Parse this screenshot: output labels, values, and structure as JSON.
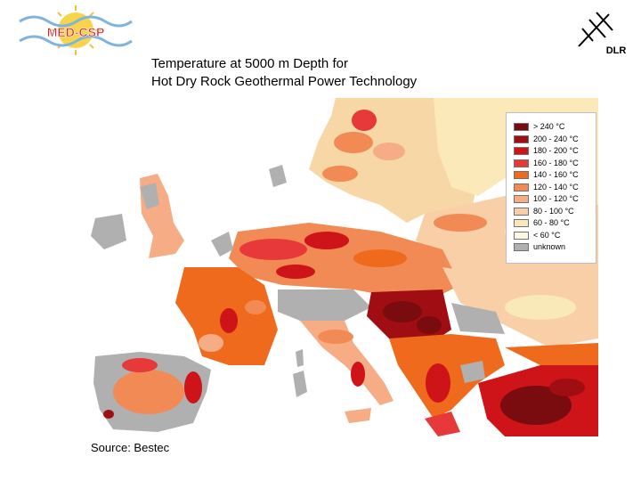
{
  "title": {
    "line1": "Temperature at 5000 m Depth for",
    "line2": "Hot Dry Rock Geothermal Power Technology"
  },
  "logos": {
    "med_csp": "MED-CSP",
    "dlr": "DLR"
  },
  "legend": [
    {
      "label": "> 240 °C",
      "color": "#7a0c10"
    },
    {
      "label": "200 - 240 °C",
      "color": "#a00d12"
    },
    {
      "label": "180 - 200 °C",
      "color": "#cf1419"
    },
    {
      "label": "160 - 180 °C",
      "color": "#e8393a"
    },
    {
      "label": "140 - 160 °C",
      "color": "#ef6a1c"
    },
    {
      "label": "120 - 140 °C",
      "color": "#f28a55"
    },
    {
      "label": "100 - 120 °C",
      "color": "#f6ad86"
    },
    {
      "label": "80 - 100 °C",
      "color": "#f8cfa6"
    },
    {
      "label": "60 - 80 °C",
      "color": "#fae9b8"
    },
    {
      "label": "< 60 °C",
      "color": "#fdf8e3"
    },
    {
      "label": "unknown",
      "color": "#b0b0b0"
    }
  ],
  "source": "Source: Bestec"
}
